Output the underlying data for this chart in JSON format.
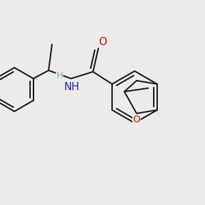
{
  "background_color": "#ebebeb",
  "bond_color": "#1a1a1a",
  "bond_width": 1.5,
  "figsize": [
    3.0,
    3.0
  ],
  "dpi": 100,
  "xlim": [
    0,
    300
  ],
  "ylim": [
    0,
    300
  ],
  "O_carbonyl_color": "#dd1100",
  "O_furan_color": "#dd1100",
  "N_color": "#2222cc",
  "H_color": "#7aacac",
  "C_color": "#1a1a1a"
}
